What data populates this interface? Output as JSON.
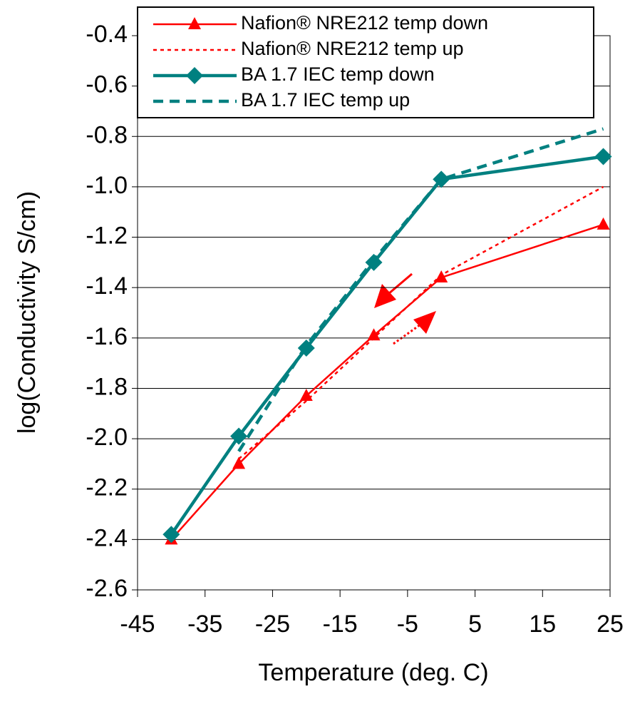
{
  "chart_data": {
    "type": "line",
    "x_label": "Temperature (deg. C)",
    "y_label": "log(Conductivity S/cm)",
    "xlim": [
      -45,
      25
    ],
    "xticks": [
      -45,
      -35,
      -25,
      -15,
      -5,
      5,
      15,
      25
    ],
    "ylim": [
      -2.6,
      -0.4
    ],
    "yticks": [
      -2.6,
      -2.4,
      -2.2,
      {
        "value": -2.0,
        "label": "-2.0"
      },
      -1.8,
      -1.6,
      -1.4,
      -1.2,
      {
        "value": -1.0,
        "label": "-1.0"
      },
      -0.8,
      -0.6,
      -0.4
    ],
    "grid": true,
    "series": [
      {
        "name": "Nafion® NRE212 temp down",
        "color": "#ff0000",
        "style": "solid",
        "marker": "triangle",
        "x": [
          -40,
          -30,
          -20,
          -10,
          0,
          24
        ],
        "values": [
          -2.4,
          -2.1,
          -1.83,
          -1.59,
          -1.36,
          -1.15
        ]
      },
      {
        "name": "Nafion® NRE212 temp up",
        "color": "#ff0000",
        "style": "dotted",
        "marker": "none",
        "x": [
          -30,
          -20,
          -10,
          0,
          24
        ],
        "values": [
          -2.08,
          -1.85,
          -1.6,
          -1.35,
          -1.0
        ]
      },
      {
        "name": "BA  1.7 IEC temp down",
        "color": "#008080",
        "style": "solid",
        "marker": "diamond",
        "x": [
          -40,
          -30,
          -20,
          -10,
          0,
          24
        ],
        "values": [
          -2.38,
          -1.99,
          -1.64,
          -1.3,
          -0.97,
          -0.88
        ]
      },
      {
        "name": "BA  1.7 IEC  temp up",
        "color": "#008080",
        "style": "dashed",
        "marker": "none",
        "x": [
          -30,
          -20,
          -10,
          0,
          24
        ],
        "values": [
          -2.05,
          -1.63,
          -1.29,
          -0.97,
          -0.77
        ]
      }
    ]
  }
}
